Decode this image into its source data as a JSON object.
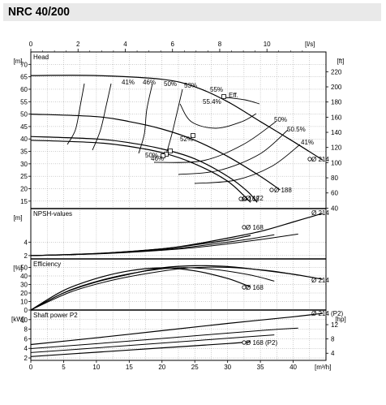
{
  "header": {
    "title": "NRC 40/200"
  },
  "chart_data": {
    "type": "line",
    "title": "NRC 40/200",
    "top_axis": {
      "unit": "[l/s]",
      "ticks": [
        0,
        2,
        4,
        6,
        8,
        10
      ]
    },
    "bottom_axis": {
      "unit": "[m³/h]",
      "ticks": [
        0,
        5,
        10,
        15,
        20,
        25,
        30,
        35,
        40
      ],
      "xlim": [
        0,
        45
      ]
    },
    "panels": [
      {
        "id": "head",
        "label": "Head",
        "ylabel": "[m]",
        "ylim": [
          12,
          75
        ],
        "yticks": [
          15,
          20,
          25,
          30,
          35,
          40,
          45,
          50,
          55,
          60,
          65,
          70
        ],
        "right_unit": "[ft]",
        "right_ticks": [
          40,
          60,
          80,
          100,
          120,
          140,
          160,
          180,
          200,
          220
        ],
        "series": [
          {
            "name": "Ø 214",
            "x": [
              0,
              10,
              20,
              25,
              30,
              35,
              40,
              44.5
            ],
            "y": [
              65.5,
              65.5,
              64,
              61,
              55,
              47,
              39,
              31.5
            ]
          },
          {
            "name": "Ø 188",
            "x": [
              0,
              10,
              15,
              20,
              25,
              30,
              35,
              38
            ],
            "y": [
              50,
              49,
              47,
              44,
              39.5,
              33,
              25,
              19.5
            ]
          },
          {
            "name": "Ø 172",
            "x": [
              0,
              10,
              15,
              20,
              25,
              30,
              33,
              34.5
            ],
            "y": [
              41,
              40,
              38.5,
              36,
              32,
              25,
              19,
              14.5
            ]
          },
          {
            "name": "Ø 168",
            "x": [
              0,
              10,
              15,
              20,
              25,
              30,
              33.5
            ],
            "y": [
              39.5,
              38.5,
              37,
              34.5,
              30,
              23,
              14.5
            ]
          }
        ],
        "efficiency_labels": [
          "41%",
          "46%",
          "50%",
          "53%",
          "55%",
          "55.4%",
          "Eff.",
          "52%",
          "50%",
          "50.5%",
          "50%",
          "46%",
          "41%"
        ],
        "diameter_labels": [
          "Ø 214",
          "Ø 188",
          "Ø 172",
          "Ø 168"
        ]
      },
      {
        "id": "npsh",
        "label": "NPSH-values",
        "ylabel": "[m]",
        "ylim": [
          1.5,
          9
        ],
        "yticks": [
          2,
          4
        ],
        "series": [
          {
            "name": "Ø 214",
            "x": [
              0,
              10,
              20,
              25,
              30,
              35,
              40,
              44.5
            ],
            "y": [
              2,
              2.3,
              3,
              3.7,
              4.6,
              5.6,
              7,
              8.3
            ]
          },
          {
            "name": "Ø 168",
            "x": [
              0,
              10,
              20,
              25,
              30,
              33.5
            ],
            "y": [
              2,
              2.3,
              3,
              3.6,
              4.3,
              5
            ]
          }
        ],
        "labels": [
          "Ø 214",
          "Ø 168"
        ]
      },
      {
        "id": "efficiency",
        "label": "Efficiency",
        "ylabel": "[%]",
        "ylim": [
          0,
          60
        ],
        "yticks": [
          0,
          10,
          20,
          30,
          40,
          50
        ],
        "series": [
          {
            "name": "Ø 214",
            "x": [
              0,
              5,
              10,
              15,
              20,
              25,
              30,
              35,
              40,
              44.5
            ],
            "y": [
              0,
              20,
              33,
              42,
              49.5,
              52,
              51,
              47,
              42,
              36
            ]
          },
          {
            "name": "Ø 168",
            "x": [
              0,
              5,
              10,
              15,
              20,
              25,
              30,
              33.5
            ],
            "y": [
              0,
              23,
              37,
              46,
              49.5,
              46,
              37,
              27
            ]
          }
        ],
        "labels": [
          "Ø 214",
          "Ø 168"
        ]
      },
      {
        "id": "power",
        "label": "Shaft power P2",
        "ylabel": "[kW]",
        "ylim": [
          1.5,
          12
        ],
        "yticks": [
          2,
          4,
          6,
          8,
          10
        ],
        "right_unit": "[hp]",
        "right_ticks": [
          4,
          8,
          12
        ],
        "series": [
          {
            "name": "Ø 214 (P2)",
            "x": [
              0,
              10,
              20,
              30,
              40,
              44.5
            ],
            "y": [
              4.8,
              6.2,
              7.7,
              9.2,
              10.6,
              11.3
            ]
          },
          {
            "name": "Ø 168 (P2)",
            "x": [
              0,
              10,
              20,
              30,
              33.5
            ],
            "y": [
              2.3,
              3.2,
              4.1,
              5,
              5.4
            ]
          }
        ],
        "labels": [
          "Ø 214 (P2)",
          "Ø 168 (P2)"
        ]
      }
    ],
    "grid": true
  }
}
